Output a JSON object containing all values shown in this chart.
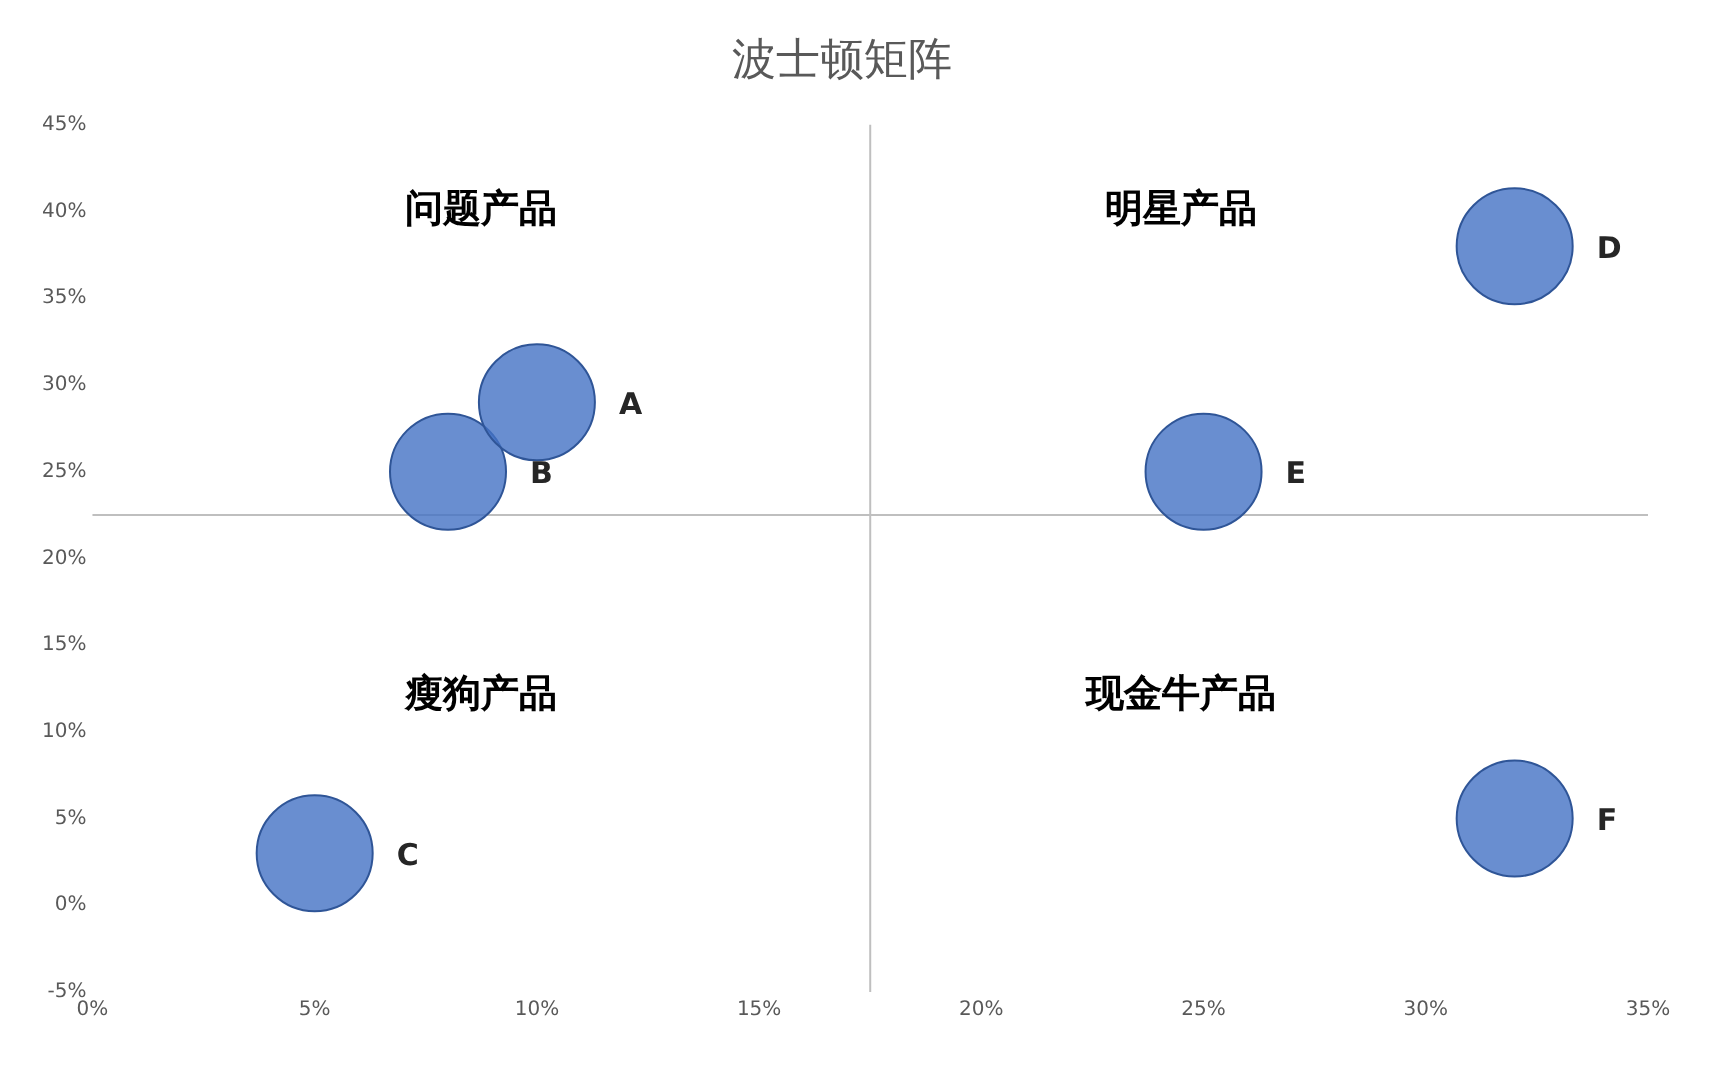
{
  "chart_data": {
    "type": "bubble",
    "title": "波士顿矩阵",
    "series": [
      {
        "name": "A",
        "color": "#4472c4",
        "x": [
          10
        ],
        "values": [
          29
        ],
        "sizes": [
          1
        ]
      },
      {
        "name": "B",
        "color": "#4472c4",
        "x": [
          8
        ],
        "values": [
          25
        ],
        "sizes": [
          1
        ]
      },
      {
        "name": "C",
        "color": "#4472c4",
        "x": [
          5
        ],
        "values": [
          3
        ],
        "sizes": [
          1
        ]
      },
      {
        "name": "D",
        "color": "#4472c4",
        "x": [
          32
        ],
        "values": [
          38
        ],
        "sizes": [
          1
        ]
      },
      {
        "name": "E",
        "color": "#4472c4",
        "x": [
          25
        ],
        "values": [
          25
        ],
        "sizes": [
          1
        ]
      },
      {
        "name": "F",
        "color": "#4472c4",
        "x": [
          32
        ],
        "values": [
          5
        ],
        "sizes": [
          1
        ]
      }
    ],
    "xlim": [
      0,
      35
    ],
    "xticks": [
      {
        "value": 0,
        "label": "0%"
      },
      {
        "value": 5,
        "label": "5%"
      },
      {
        "value": 10,
        "label": "10%"
      },
      {
        "value": 15,
        "label": "15%"
      },
      {
        "value": 20,
        "label": "20%"
      },
      {
        "value": 25,
        "label": "25%"
      },
      {
        "value": 30,
        "label": "30%"
      },
      {
        "value": 35,
        "label": "35%"
      }
    ],
    "ylim": [
      -5,
      45
    ],
    "yticks": [
      {
        "value": -5,
        "label": "-5%"
      },
      {
        "value": 0,
        "label": "0%"
      },
      {
        "value": 5,
        "label": "5%"
      },
      {
        "value": 10,
        "label": "10%"
      },
      {
        "value": 15,
        "label": "15%"
      },
      {
        "value": 20,
        "label": "20%"
      },
      {
        "value": 25,
        "label": "25%"
      },
      {
        "value": 30,
        "label": "30%"
      },
      {
        "value": 35,
        "label": "35%"
      },
      {
        "value": 40,
        "label": "40%"
      },
      {
        "value": 45,
        "label": "45%"
      }
    ],
    "ref_lines": [
      {
        "axis": "x",
        "value": 17.5,
        "color": "#bfbfbf"
      },
      {
        "axis": "y",
        "value": 22.5,
        "color": "#bfbfbf"
      }
    ],
    "annotations": [
      "问题产品",
      "明星产品",
      "瘦狗产品",
      "现金牛产品"
    ],
    "grid": false,
    "legend": false
  }
}
